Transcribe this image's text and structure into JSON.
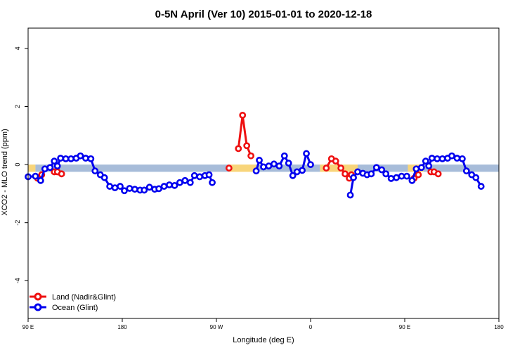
{
  "chart_data": {
    "type": "line",
    "title": "0-5N April (Ver 10)   2015-01-01 to 2020-12-18",
    "xlabel": "Longitude (deg E)",
    "ylabel": "XCO2 - MLO trend (ppm)",
    "xlim": [
      90,
      540
    ],
    "ylim": [
      -5.3,
      4.7
    ],
    "x_ticks": [
      {
        "value": 90,
        "label": "90 E"
      },
      {
        "value": 180,
        "label": "180"
      },
      {
        "value": 270,
        "label": "90 W"
      },
      {
        "value": 360,
        "label": "0"
      },
      {
        "value": 450,
        "label": "90 E"
      },
      {
        "value": 540,
        "label": "180"
      }
    ],
    "y_ticks": [
      {
        "value": 4,
        "label": "4"
      },
      {
        "value": 2,
        "label": "2"
      },
      {
        "value": 0,
        "label": "0"
      },
      {
        "value": -2,
        "label": "-2"
      },
      {
        "value": -4,
        "label": "-4"
      }
    ],
    "legend": {
      "position": "bottom-left"
    },
    "band": {
      "ymin": -0.25,
      "ymax": 0.0
    },
    "band_colors": {
      "ocean": "#a7bcd9",
      "land": "#f8d57a"
    },
    "band_segments": [
      {
        "x0": 90,
        "x1": 97,
        "kind": "land"
      },
      {
        "x0": 97,
        "x1": 282,
        "kind": "ocean"
      },
      {
        "x0": 282,
        "x1": 308,
        "kind": "land"
      },
      {
        "x0": 308,
        "x1": 369,
        "kind": "ocean"
      },
      {
        "x0": 369,
        "x1": 405,
        "kind": "land"
      },
      {
        "x0": 405,
        "x1": 453,
        "kind": "ocean"
      },
      {
        "x0": 453,
        "x1": 468,
        "kind": "land"
      },
      {
        "x0": 468,
        "x1": 540,
        "kind": "ocean"
      }
    ],
    "series": [
      {
        "name": "Land (Nadir&Glint)",
        "color": "#ee1111",
        "segments": [
          [
            [
              99,
              -0.47
            ],
            [
              103,
              -0.35
            ]
          ],
          [
            [
              115,
              -0.25
            ],
            [
              118,
              -0.25
            ],
            [
              122,
              -0.32
            ]
          ],
          [
            [
              282,
              -0.12
            ]
          ],
          [
            [
              291,
              0.55
            ],
            [
              295,
              1.7
            ],
            [
              299,
              0.65
            ],
            [
              303,
              0.3
            ]
          ],
          [
            [
              375,
              -0.12
            ],
            [
              380,
              0.2
            ],
            [
              384,
              0.12
            ],
            [
              389,
              -0.12
            ],
            [
              393,
              -0.32
            ],
            [
              397,
              -0.47
            ],
            [
              399,
              -0.35
            ]
          ],
          [
            [
              459,
              -0.47
            ],
            [
              463,
              -0.35
            ]
          ],
          [
            [
              475,
              -0.25
            ],
            [
              478,
              -0.25
            ],
            [
              482,
              -0.32
            ]
          ]
        ]
      },
      {
        "name": "Ocean (Glint)",
        "color": "#0000ee",
        "segments": [
          [
            [
              90,
              -0.42
            ],
            [
              97,
              -0.4
            ],
            [
              102,
              -0.55
            ],
            [
              106,
              -0.15
            ],
            [
              111,
              -0.1
            ],
            [
              115,
              0.12
            ],
            [
              118,
              -0.05
            ],
            [
              121,
              0.22
            ],
            [
              126,
              0.2
            ],
            [
              131,
              0.2
            ],
            [
              136,
              0.22
            ],
            [
              140,
              0.3
            ],
            [
              145,
              0.22
            ],
            [
              150,
              0.2
            ],
            [
              154,
              -0.22
            ],
            [
              159,
              -0.35
            ],
            [
              163,
              -0.45
            ],
            [
              168,
              -0.75
            ],
            [
              173,
              -0.8
            ],
            [
              178,
              -0.75
            ],
            [
              182,
              -0.9
            ],
            [
              187,
              -0.82
            ],
            [
              192,
              -0.85
            ],
            [
              197,
              -0.88
            ],
            [
              201,
              -0.88
            ],
            [
              206,
              -0.78
            ],
            [
              211,
              -0.85
            ],
            [
              215,
              -0.83
            ],
            [
              220,
              -0.75
            ],
            [
              225,
              -0.7
            ],
            [
              230,
              -0.72
            ],
            [
              235,
              -0.62
            ],
            [
              240,
              -0.55
            ],
            [
              245,
              -0.62
            ],
            [
              249,
              -0.38
            ],
            [
              254,
              -0.42
            ],
            [
              259,
              -0.38
            ],
            [
              263,
              -0.35
            ],
            [
              266,
              -0.62
            ]
          ],
          [
            [
              308,
              -0.22
            ],
            [
              311,
              0.15
            ],
            [
              315,
              -0.08
            ],
            [
              320,
              -0.05
            ],
            [
              325,
              0.02
            ],
            [
              330,
              -0.05
            ],
            [
              335,
              0.3
            ],
            [
              339,
              0.05
            ],
            [
              343,
              -0.38
            ],
            [
              347,
              -0.25
            ],
            [
              352,
              -0.2
            ],
            [
              356,
              0.38
            ],
            [
              360,
              0.0
            ]
          ],
          [
            [
              398,
              -1.05
            ],
            [
              401,
              -0.45
            ],
            [
              405,
              -0.25
            ],
            [
              410,
              -0.3
            ],
            [
              414,
              -0.35
            ],
            [
              418,
              -0.32
            ],
            [
              423,
              -0.1
            ],
            [
              428,
              -0.18
            ],
            [
              432,
              -0.32
            ],
            [
              437,
              -0.48
            ],
            [
              442,
              -0.45
            ],
            [
              447,
              -0.4
            ],
            [
              452,
              -0.4
            ],
            [
              457,
              -0.55
            ],
            [
              461,
              -0.15
            ],
            [
              466,
              -0.1
            ],
            [
              470,
              0.12
            ],
            [
              473,
              -0.05
            ],
            [
              476,
              0.22
            ],
            [
              481,
              0.2
            ],
            [
              486,
              0.2
            ],
            [
              491,
              0.22
            ],
            [
              495,
              0.3
            ],
            [
              500,
              0.22
            ],
            [
              505,
              0.2
            ],
            [
              509,
              -0.22
            ],
            [
              514,
              -0.35
            ],
            [
              518,
              -0.45
            ],
            [
              523,
              -0.75
            ]
          ]
        ]
      }
    ]
  }
}
